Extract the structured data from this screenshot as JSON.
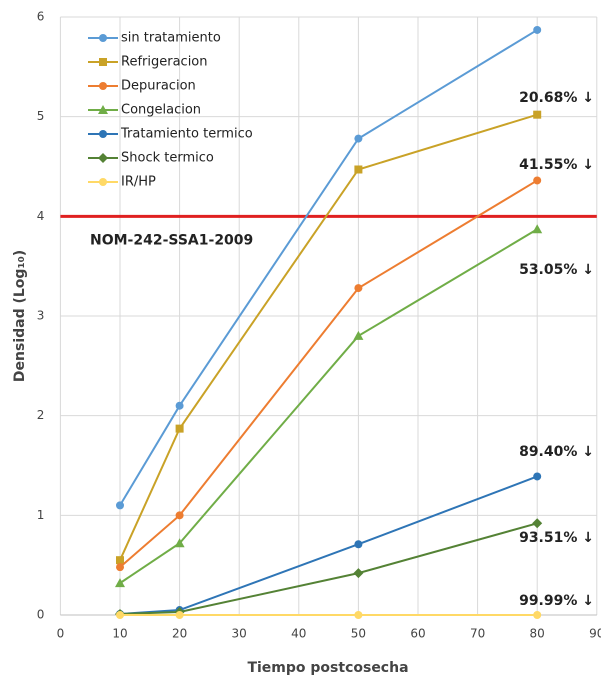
{
  "chart_data": {
    "type": "line",
    "x_label": "Tiempo postcosecha",
    "y_label": "Densidad (Log₁₀)",
    "x": [
      10,
      20,
      50,
      80
    ],
    "xlim": [
      0,
      90
    ],
    "xticks": [
      0,
      10,
      20,
      30,
      40,
      50,
      60,
      70,
      80,
      90
    ],
    "ylim": [
      0,
      6
    ],
    "yticks": [
      0,
      1,
      2,
      3,
      4,
      5,
      6
    ],
    "grid": true,
    "legend": "upper left",
    "series": [
      {
        "name": "sin tratamiento",
        "color": "#5b9bd5",
        "marker": "circle",
        "values": [
          1.1,
          2.1,
          4.78,
          5.87
        ]
      },
      {
        "name": "Refrigeracion",
        "color": "#c9a227",
        "marker": "square",
        "values": [
          0.55,
          1.87,
          4.47,
          5.02
        ]
      },
      {
        "name": "Depuracion",
        "color": "#ed7d31",
        "marker": "circle",
        "values": [
          0.48,
          1.0,
          3.28,
          4.36
        ]
      },
      {
        "name": "Congelacion",
        "color": "#70ad47",
        "marker": "triangle",
        "values": [
          0.32,
          0.72,
          2.8,
          3.87
        ]
      },
      {
        "name": "Tratamiento termico",
        "color": "#2e75b6",
        "marker": "circle",
        "values": [
          0.01,
          0.05,
          0.71,
          1.39
        ]
      },
      {
        "name": "Shock termico",
        "color": "#548235",
        "marker": "diamond",
        "values": [
          0.01,
          0.03,
          0.42,
          0.92
        ]
      },
      {
        "name": "IR/HP",
        "color": "#ffd966",
        "marker": "circle",
        "values": [
          0,
          0,
          0,
          0
        ]
      }
    ],
    "reference_line": {
      "value": 4,
      "label": "NOM-242-SSA1-2009",
      "color": "#e02020"
    },
    "annotations": [
      "20.68% ↓",
      "41.55% ↓",
      "53.05% ↓",
      "89.40% ↓",
      "93.51% ↓",
      "99.99% ↓"
    ]
  }
}
